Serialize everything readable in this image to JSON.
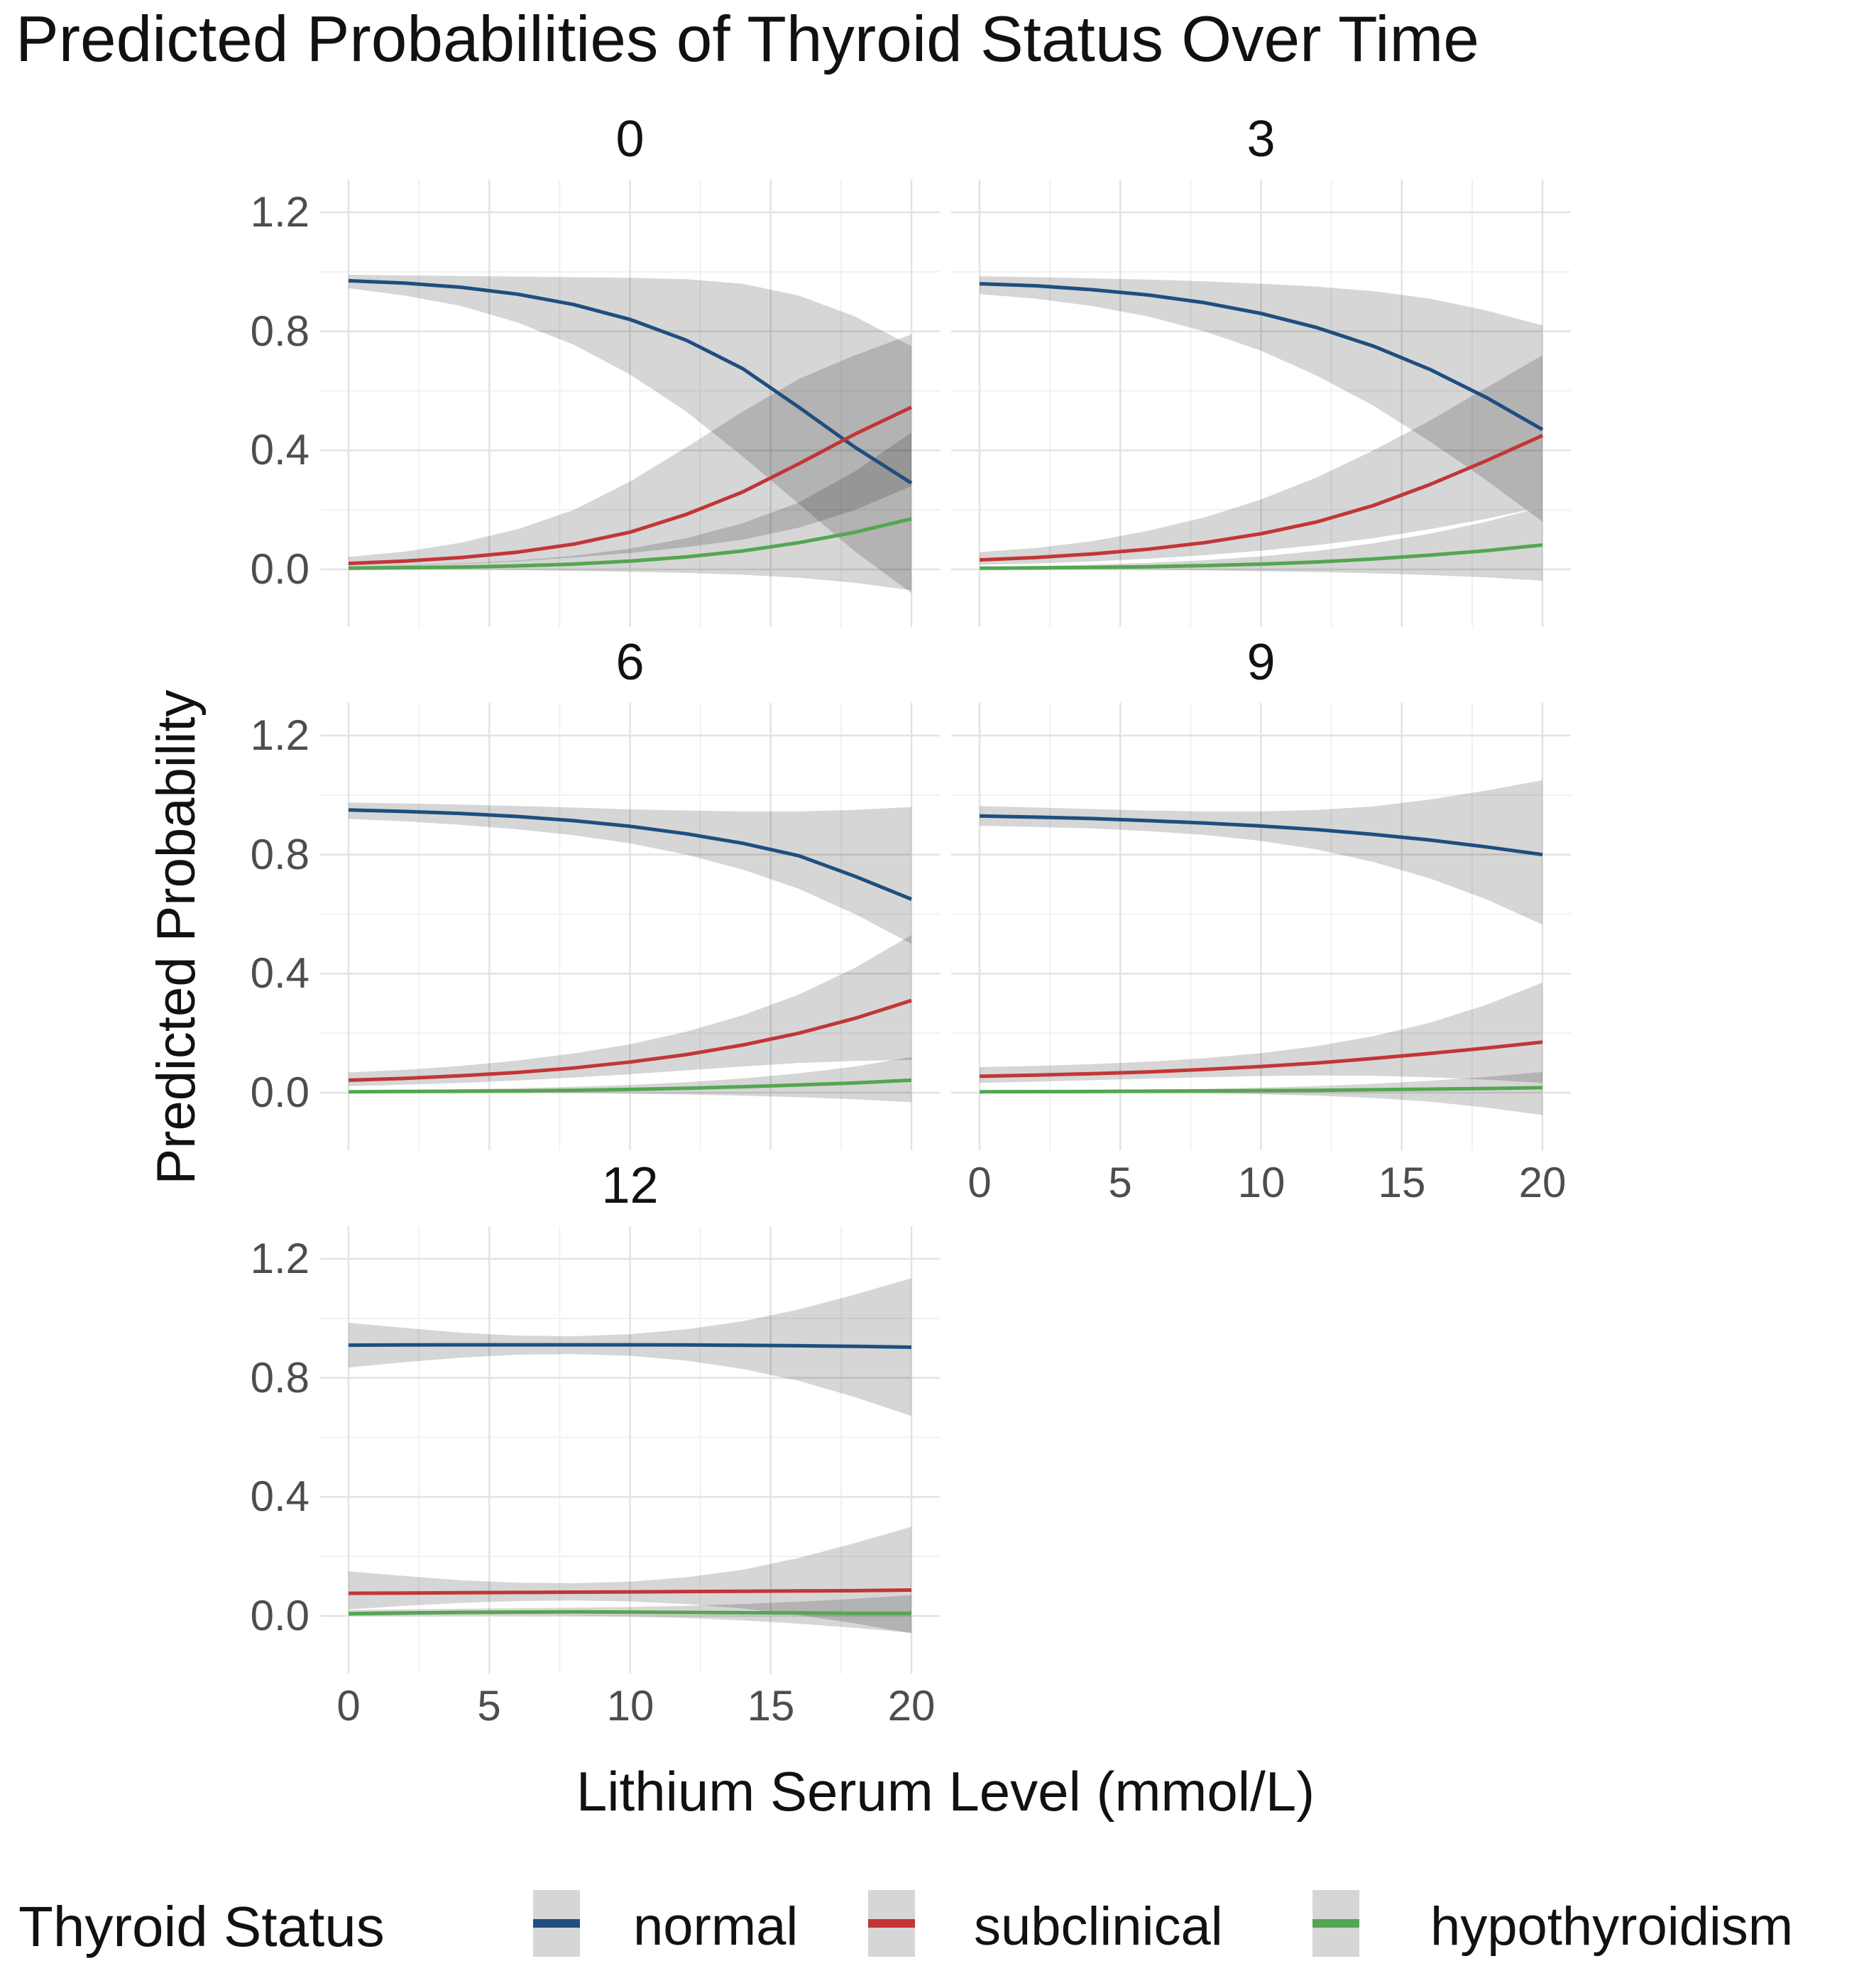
{
  "title": "Predicted Probabilities of Thyroid Status Over Time",
  "x_axis": {
    "title": "Lithium Serum Level (mmol/L)",
    "tick_labels": [
      "0",
      "5",
      "10",
      "15",
      "20"
    ],
    "tick_values": [
      0,
      5,
      10,
      15,
      20
    ],
    "minor_values": [
      2.5,
      7.5,
      12.5,
      17.5
    ],
    "range": [
      0,
      20
    ]
  },
  "y_axis": {
    "title": "Predicted Probability",
    "tick_labels": [
      "1.2",
      "0.8",
      "0.4",
      "0.0"
    ],
    "tick_values": [
      1.2,
      0.8,
      0.4,
      0.0
    ],
    "minor_values": [
      1.0,
      0.6,
      0.2
    ]
  },
  "legend": {
    "title": "Thyroid Status",
    "key_fill": "#d6d6d6",
    "items": [
      {
        "label": "normal",
        "color": "#1f4e7f"
      },
      {
        "label": "subclinical",
        "color": "#c23636"
      },
      {
        "label": "hypothyroidism",
        "color": "#54a653"
      }
    ]
  },
  "style_colors": {
    "ribbon_fill": "rgba(0,0,0,0.16)",
    "grid_major": "#e3e3e3",
    "grid_minor": "#f1f1f1",
    "tick_text": "#4d4d4d"
  },
  "chart_data": {
    "type": "line",
    "title": "Predicted Probabilities of Thyroid Status Over Time",
    "xlabel": "Lithium Serum Level (mmol/L)",
    "ylabel": "Predicted Probability",
    "facet_note": "facets are months 0, 3, 6, 9, 12; gray bands are confidence ribbons",
    "xlim": [
      0,
      20
    ],
    "ylim_displayed": [
      -0.19,
      1.31
    ],
    "grid": "on",
    "legend_position": "bottom",
    "x": [
      0,
      2,
      4,
      6,
      8,
      10,
      12,
      14,
      16,
      18,
      20
    ],
    "facets": [
      {
        "label": "0",
        "series": [
          {
            "name": "normal",
            "mean": [
              0.97,
              0.962,
              0.948,
              0.925,
              0.89,
              0.84,
              0.77,
              0.675,
              0.545,
              0.41,
              0.29
            ],
            "upper": [
              0.99,
              0.988,
              0.986,
              0.984,
              0.982,
              0.98,
              0.975,
              0.96,
              0.92,
              0.85,
              0.75
            ],
            "lower": [
              0.945,
              0.92,
              0.885,
              0.83,
              0.755,
              0.655,
              0.53,
              0.38,
              0.22,
              0.06,
              -0.08
            ]
          },
          {
            "name": "subclinical",
            "mean": [
              0.02,
              0.028,
              0.04,
              0.058,
              0.085,
              0.125,
              0.185,
              0.26,
              0.355,
              0.455,
              0.545
            ],
            "upper": [
              0.042,
              0.06,
              0.09,
              0.135,
              0.2,
              0.295,
              0.41,
              0.53,
              0.64,
              0.72,
              0.79
            ],
            "lower": [
              0.008,
              0.012,
              0.018,
              0.027,
              0.04,
              0.055,
              0.075,
              0.1,
              0.14,
              0.2,
              0.28
            ]
          },
          {
            "name": "hypothyroidism",
            "mean": [
              0.004,
              0.006,
              0.008,
              0.012,
              0.018,
              0.028,
              0.042,
              0.062,
              0.09,
              0.125,
              0.17
            ],
            "upper": [
              0.01,
              0.014,
              0.02,
              0.03,
              0.046,
              0.07,
              0.105,
              0.155,
              0.225,
              0.33,
              0.46
            ],
            "lower": [
              0.0,
              0.0,
              0.0,
              -0.002,
              -0.005,
              -0.008,
              -0.012,
              -0.018,
              -0.028,
              -0.045,
              -0.07
            ]
          }
        ]
      },
      {
        "label": "3",
        "series": [
          {
            "name": "normal",
            "mean": [
              0.96,
              0.953,
              0.94,
              0.922,
              0.896,
              0.86,
              0.812,
              0.75,
              0.672,
              0.578,
              0.47
            ],
            "upper": [
              0.985,
              0.982,
              0.978,
              0.974,
              0.968,
              0.96,
              0.95,
              0.935,
              0.91,
              0.87,
              0.82
            ],
            "lower": [
              0.925,
              0.91,
              0.885,
              0.85,
              0.8,
              0.735,
              0.65,
              0.55,
              0.43,
              0.3,
              0.16
            ]
          },
          {
            "name": "subclinical",
            "mean": [
              0.032,
              0.04,
              0.052,
              0.068,
              0.09,
              0.12,
              0.16,
              0.215,
              0.285,
              0.365,
              0.45
            ],
            "upper": [
              0.058,
              0.072,
              0.095,
              0.13,
              0.175,
              0.235,
              0.31,
              0.4,
              0.5,
              0.61,
              0.72
            ],
            "lower": [
              0.016,
              0.02,
              0.027,
              0.036,
              0.048,
              0.063,
              0.082,
              0.105,
              0.135,
              0.17,
              0.21
            ]
          },
          {
            "name": "hypothyroidism",
            "mean": [
              0.004,
              0.005,
              0.007,
              0.009,
              0.013,
              0.018,
              0.025,
              0.035,
              0.048,
              0.063,
              0.082
            ],
            "upper": [
              0.009,
              0.012,
              0.016,
              0.022,
              0.031,
              0.044,
              0.062,
              0.088,
              0.12,
              0.16,
              0.21
            ],
            "lower": [
              0.0,
              0.0,
              0.0,
              -0.001,
              -0.003,
              -0.006,
              -0.009,
              -0.013,
              -0.019,
              -0.027,
              -0.038
            ]
          }
        ]
      },
      {
        "label": "6",
        "series": [
          {
            "name": "normal",
            "mean": [
              0.95,
              0.945,
              0.938,
              0.928,
              0.914,
              0.895,
              0.87,
              0.838,
              0.796,
              0.727,
              0.65
            ],
            "upper": [
              0.975,
              0.972,
              0.968,
              0.963,
              0.958,
              0.952,
              0.948,
              0.945,
              0.945,
              0.95,
              0.96
            ],
            "lower": [
              0.92,
              0.912,
              0.9,
              0.885,
              0.865,
              0.838,
              0.8,
              0.75,
              0.685,
              0.6,
              0.5
            ]
          },
          {
            "name": "subclinical",
            "mean": [
              0.042,
              0.048,
              0.057,
              0.068,
              0.083,
              0.103,
              0.128,
              0.16,
              0.2,
              0.25,
              0.31
            ],
            "upper": [
              0.068,
              0.077,
              0.09,
              0.108,
              0.132,
              0.163,
              0.205,
              0.26,
              0.33,
              0.42,
              0.53
            ],
            "lower": [
              0.022,
              0.027,
              0.033,
              0.041,
              0.051,
              0.062,
              0.075,
              0.088,
              0.1,
              0.107,
              0.11
            ]
          },
          {
            "name": "hypothyroidism",
            "mean": [
              0.003,
              0.004,
              0.005,
              0.006,
              0.008,
              0.011,
              0.015,
              0.02,
              0.026,
              0.033,
              0.042
            ],
            "upper": [
              0.008,
              0.009,
              0.012,
              0.015,
              0.02,
              0.026,
              0.035,
              0.048,
              0.065,
              0.088,
              0.12
            ],
            "lower": [
              0.0,
              0.0,
              0.0,
              0.0,
              -0.001,
              -0.003,
              -0.006,
              -0.01,
              -0.015,
              -0.022,
              -0.032
            ]
          }
        ]
      },
      {
        "label": "9",
        "series": [
          {
            "name": "normal",
            "mean": [
              0.93,
              0.926,
              0.921,
              0.914,
              0.906,
              0.896,
              0.884,
              0.868,
              0.849,
              0.826,
              0.8
            ],
            "upper": [
              0.963,
              0.958,
              0.953,
              0.948,
              0.945,
              0.945,
              0.95,
              0.962,
              0.985,
              1.015,
              1.05
            ],
            "lower": [
              0.897,
              0.893,
              0.888,
              0.879,
              0.866,
              0.846,
              0.817,
              0.775,
              0.72,
              0.65,
              0.565
            ]
          },
          {
            "name": "subclinical",
            "mean": [
              0.055,
              0.059,
              0.064,
              0.07,
              0.078,
              0.088,
              0.1,
              0.115,
              0.132,
              0.15,
              0.17
            ],
            "upper": [
              0.086,
              0.09,
              0.096,
              0.104,
              0.116,
              0.133,
              0.157,
              0.19,
              0.235,
              0.295,
              0.37
            ],
            "lower": [
              0.033,
              0.037,
              0.042,
              0.047,
              0.052,
              0.056,
              0.058,
              0.057,
              0.052,
              0.044,
              0.033
            ]
          },
          {
            "name": "hypothyroidism",
            "mean": [
              0.003,
              0.0035,
              0.004,
              0.005,
              0.006,
              0.007,
              0.008,
              0.01,
              0.012,
              0.014,
              0.017
            ],
            "upper": [
              0.007,
              0.008,
              0.009,
              0.011,
              0.013,
              0.017,
              0.022,
              0.03,
              0.04,
              0.053,
              0.07
            ],
            "lower": [
              0.0,
              0.0,
              0.0,
              -0.001,
              -0.002,
              -0.005,
              -0.01,
              -0.018,
              -0.03,
              -0.05,
              -0.075
            ]
          }
        ]
      },
      {
        "label": "12",
        "series": [
          {
            "name": "normal",
            "mean": [
              0.91,
              0.9105,
              0.911,
              0.9112,
              0.9112,
              0.911,
              0.9105,
              0.9095,
              0.908,
              0.906,
              0.903
            ],
            "upper": [
              0.985,
              0.968,
              0.952,
              0.942,
              0.94,
              0.947,
              0.963,
              0.99,
              1.03,
              1.08,
              1.135
            ],
            "lower": [
              0.835,
              0.853,
              0.868,
              0.878,
              0.88,
              0.874,
              0.858,
              0.83,
              0.79,
              0.735,
              0.672
            ]
          },
          {
            "name": "subclinical",
            "mean": [
              0.076,
              0.077,
              0.078,
              0.079,
              0.08,
              0.081,
              0.082,
              0.083,
              0.084,
              0.085,
              0.087
            ],
            "upper": [
              0.15,
              0.134,
              0.12,
              0.112,
              0.11,
              0.115,
              0.13,
              0.155,
              0.195,
              0.245,
              0.3
            ],
            "lower": [
              0.022,
              0.034,
              0.044,
              0.05,
              0.052,
              0.049,
              0.04,
              0.025,
              0.003,
              -0.025,
              -0.058
            ]
          },
          {
            "name": "hypothyroidism",
            "mean": [
              0.008,
              0.01,
              0.012,
              0.013,
              0.0135,
              0.013,
              0.012,
              0.011,
              0.01,
              0.009,
              0.009
            ],
            "upper": [
              0.02,
              0.022,
              0.024,
              0.026,
              0.028,
              0.03,
              0.034,
              0.04,
              0.048,
              0.058,
              0.07
            ],
            "lower": [
              0.0,
              0.001,
              0.002,
              0.002,
              0.001,
              -0.002,
              -0.007,
              -0.015,
              -0.026,
              -0.04,
              -0.057
            ]
          }
        ]
      }
    ]
  }
}
